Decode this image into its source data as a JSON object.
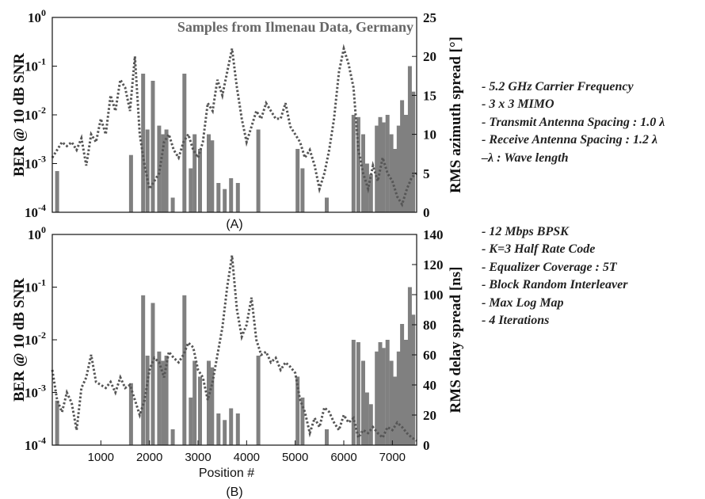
{
  "figure": {
    "notes_a": [
      "- 5.2 GHz Carrier Frequency",
      "- 3 x 3 MIMO",
      "- Transmit Antenna Spacing : 1.0 λ",
      "- Receive Antenna Spacing : 1.2 λ",
      "–λ : Wave length"
    ],
    "notes_b": [
      "- 12 Mbps BPSK",
      "- K=3 Half Rate Code",
      "- Equalizer Coverage : 5T",
      "- Block Random Interleaver",
      "- Max Log Map",
      "- 4 Iterations"
    ]
  },
  "chart_data": [
    {
      "type": "bar",
      "caption": "(A)",
      "annotation": "Samples from Ilmenau Data, Germany",
      "ylabel": "BER @ 10 dB SNR",
      "y2label": "RMS azimuth spread [°]",
      "y_scale": "log",
      "ylim": [
        0.0001,
        1
      ],
      "y_ticks": [
        "10^0",
        "10^-1",
        "10^-2",
        "10^-3",
        "10^-4"
      ],
      "y2lim": [
        0,
        25
      ],
      "y2_ticks": [
        "0",
        "5",
        "10",
        "15",
        "20",
        "25"
      ],
      "xlim": [
        0,
        7500
      ],
      "x_tick_labels_shown": false,
      "bar_color": "#808080",
      "line_color": "#555555",
      "bars": {
        "x": [
          100,
          1620,
          1870,
          1960,
          2070,
          2200,
          2280,
          2350,
          2480,
          2720,
          2850,
          2930,
          3040,
          3220,
          3290,
          3420,
          3550,
          3680,
          3820,
          4240,
          4380,
          4510,
          5050,
          5150,
          5310,
          5650,
          6200,
          6300,
          6400,
          6480,
          6560,
          6680,
          6750,
          6820,
          6900,
          6980,
          7060,
          7130,
          7200,
          7280,
          7360,
          7430
        ],
        "ber": [
          0.0007,
          0.0015,
          0.07,
          0.005,
          0.05,
          0.006,
          0.004,
          0.005,
          0.0002,
          0.07,
          0.0008,
          0.004,
          0.002,
          0.004,
          0.003,
          0.0004,
          0.0003,
          0.0005,
          0.0004,
          0.005,
          0.0001,
          0.0001,
          0.002,
          0.0008,
          0.0001,
          0.0002,
          0.01,
          0.009,
          0.004,
          0.001,
          0.0006,
          0.006,
          0.009,
          0.007,
          0.01,
          0.004,
          0.002,
          0.006,
          0.02,
          0.01,
          0.1,
          0.03
        ]
      },
      "rms_line": {
        "x": [
          0,
          100,
          200,
          300,
          400,
          500,
          600,
          700,
          800,
          900,
          1000,
          1100,
          1200,
          1300,
          1400,
          1500,
          1600,
          1700,
          1800,
          1900,
          2000,
          2100,
          2200,
          2300,
          2400,
          2500,
          2600,
          2700,
          2800,
          2900,
          3000,
          3100,
          3200,
          3300,
          3400,
          3500,
          3600,
          3700,
          3800,
          3900,
          4000,
          4100,
          4200,
          4300,
          4400,
          4500,
          4600,
          4700,
          4800,
          4900,
          5000,
          5100,
          5200,
          5300,
          5400,
          5500,
          5600,
          5700,
          5800,
          5900,
          6000,
          6100,
          6200,
          6300,
          6400,
          6500,
          6600,
          6700,
          6800,
          6900,
          7000,
          7100,
          7200,
          7300,
          7400,
          7500
        ],
        "y": [
          7,
          8,
          9,
          8.5,
          9,
          8,
          9.5,
          6,
          10,
          9,
          12,
          10,
          15,
          13,
          17,
          16,
          13,
          20,
          10,
          6,
          3,
          4,
          5,
          9,
          10,
          8,
          7,
          9,
          10,
          8,
          7,
          9,
          14,
          13,
          17,
          15,
          18,
          21,
          16,
          12,
          9,
          11,
          13,
          12,
          14,
          13,
          12,
          12,
          14,
          11,
          10,
          9,
          7,
          8,
          6,
          3,
          5,
          8,
          12,
          18,
          21,
          19,
          16,
          8,
          5,
          3,
          6,
          4,
          7,
          5,
          4,
          2,
          1,
          3,
          4.5,
          5
        ]
      }
    },
    {
      "type": "bar",
      "caption": "(B)",
      "ylabel": "BER @ 10 dB SNR",
      "y2label": "RMS delay spread [ns]",
      "xlabel": "Position #",
      "y_scale": "log",
      "ylim": [
        0.0001,
        1
      ],
      "y_ticks": [
        "10^0",
        "10^-1",
        "10^-2",
        "10^-3",
        "10^-4"
      ],
      "y2lim": [
        0,
        140
      ],
      "y2_ticks": [
        "0",
        "20",
        "40",
        "60",
        "80",
        "100",
        "120",
        "140"
      ],
      "xlim": [
        0,
        7500
      ],
      "x_ticks": [
        1000,
        2000,
        3000,
        4000,
        5000,
        6000,
        7000
      ],
      "bar_color": "#808080",
      "line_color": "#555555",
      "bars": {
        "x": [
          100,
          1620,
          1870,
          1960,
          2070,
          2200,
          2280,
          2350,
          2480,
          2720,
          2850,
          2930,
          3040,
          3220,
          3290,
          3420,
          3550,
          3680,
          3820,
          4240,
          4380,
          4510,
          5050,
          5150,
          5310,
          5650,
          6200,
          6300,
          6400,
          6480,
          6560,
          6680,
          6750,
          6820,
          6900,
          6980,
          7060,
          7130,
          7200,
          7280,
          7360,
          7430
        ],
        "ber": [
          0.0007,
          0.0015,
          0.07,
          0.005,
          0.05,
          0.006,
          0.004,
          0.005,
          0.0002,
          0.07,
          0.0008,
          0.004,
          0.002,
          0.004,
          0.003,
          0.0004,
          0.0003,
          0.0005,
          0.0004,
          0.005,
          0.0001,
          0.0001,
          0.002,
          0.0008,
          0.0001,
          0.0002,
          0.01,
          0.009,
          0.004,
          0.001,
          0.0006,
          0.006,
          0.009,
          0.007,
          0.01,
          0.004,
          0.002,
          0.006,
          0.02,
          0.01,
          0.1,
          0.03
        ]
      },
      "rms_line": {
        "x": [
          0,
          100,
          200,
          300,
          400,
          500,
          600,
          700,
          800,
          900,
          1000,
          1100,
          1200,
          1300,
          1400,
          1500,
          1600,
          1700,
          1800,
          1900,
          2000,
          2100,
          2200,
          2300,
          2400,
          2500,
          2600,
          2700,
          2800,
          2900,
          3000,
          3100,
          3200,
          3300,
          3400,
          3500,
          3600,
          3700,
          3800,
          3900,
          4000,
          4100,
          4200,
          4300,
          4400,
          4500,
          4600,
          4700,
          4800,
          4900,
          5000,
          5100,
          5200,
          5300,
          5400,
          5500,
          5600,
          5700,
          5800,
          5900,
          6000,
          6100,
          6200,
          6300,
          6400,
          6500,
          6600,
          6700,
          6800,
          6900,
          7000,
          7100,
          7200,
          7300,
          7400,
          7500
        ],
        "y": [
          50,
          30,
          22,
          35,
          28,
          10,
          38,
          45,
          60,
          42,
          40,
          38,
          42,
          35,
          45,
          38,
          40,
          30,
          20,
          30,
          50,
          58,
          55,
          45,
          62,
          58,
          55,
          60,
          68,
          65,
          50,
          45,
          30,
          42,
          60,
          78,
          105,
          126,
          90,
          72,
          80,
          98,
          70,
          60,
          62,
          55,
          58,
          50,
          55,
          52,
          48,
          30,
          22,
          8,
          18,
          12,
          25,
          22,
          15,
          10,
          20,
          15,
          18,
          5,
          10,
          8,
          12,
          8,
          5,
          12,
          10,
          15,
          12,
          8,
          5,
          3
        ]
      }
    }
  ]
}
